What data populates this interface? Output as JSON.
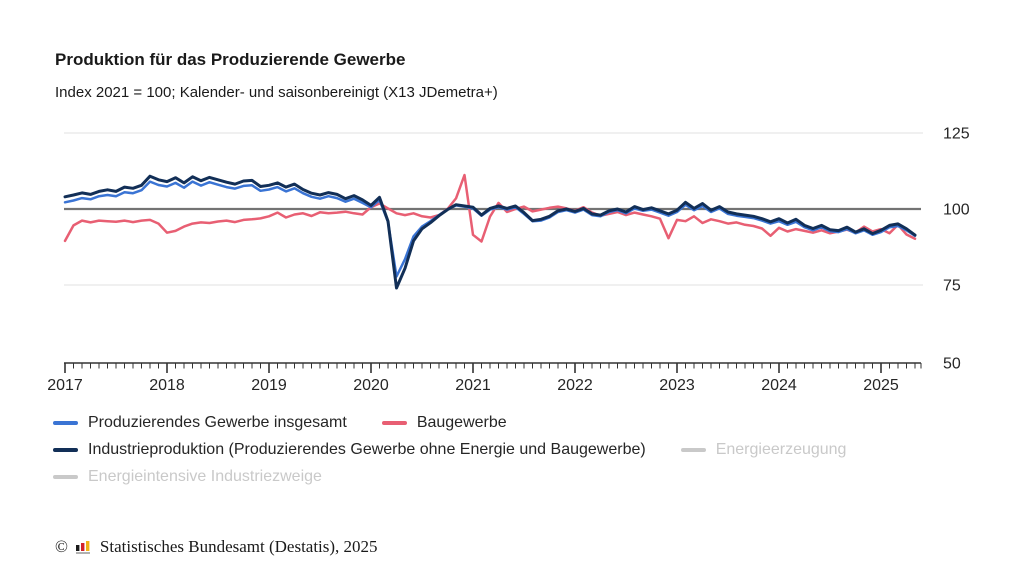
{
  "header": {
    "title": "Produktion für das Produzierende Gewerbe",
    "subtitle": "Index 2021 = 100; Kalender- und saisonbereinigt (X13 JDemetra+)"
  },
  "legend": {
    "items": [
      {
        "label": "Produzierendes Gewerbe insgesamt",
        "color": "#3a74d4",
        "active": true
      },
      {
        "label": "Baugewerbe",
        "color": "#e85f73",
        "active": true
      },
      {
        "label": "Industrieproduktion (Produzierendes Gewerbe ohne Energie und Baugewerbe)",
        "color": "#122f57",
        "active": true
      },
      {
        "label": "Energieerzeugung",
        "color": "#c9c9c9",
        "active": false
      },
      {
        "label": "Energieintensive Industriezweige",
        "color": "#c9c9c9",
        "active": false
      }
    ]
  },
  "footer": {
    "copyright_symbol": "©",
    "logo_icon": "destatis-bar-chart-logo",
    "logo_colors": {
      "black": "#1a1a1a",
      "red": "#d2232a",
      "gold": "#f0b316",
      "base": "#b0b0b0"
    },
    "text": "Statistisches Bundesamt (Destatis), 2025"
  },
  "chart_data": {
    "type": "line",
    "title": "Produktion für das Produzierende Gewerbe",
    "subtitle": "Index 2021 = 100; Kalender- und saisonbereinigt (X13 JDemetra+)",
    "x_axis": {
      "start": "2017-01",
      "end": "2025-05",
      "frequency": "monthly",
      "year_labels": [
        "2017",
        "2018",
        "2019",
        "2020",
        "2021",
        "2022",
        "2023",
        "2024",
        "2025"
      ]
    },
    "ylim": [
      50,
      125
    ],
    "yticks": [
      50,
      75,
      100,
      125
    ],
    "reference_line": 100,
    "grid": true,
    "legend_position": "bottom",
    "colors": {
      "grid_light": "#e2e2e2",
      "reference": "#737373",
      "axis": "#333333",
      "tick_label": "#262626"
    },
    "series": [
      {
        "name": "Baugewerbe",
        "color": "#e85f73",
        "width": 2.5,
        "values": [
          89.5,
          94.6,
          96.2,
          95.6,
          96.2,
          96.0,
          95.8,
          96.2,
          95.7,
          96.2,
          96.4,
          95.2,
          92.2,
          92.8,
          94.2,
          95.2,
          95.6,
          95.4,
          95.9,
          96.2,
          95.7,
          96.4,
          96.6,
          96.9,
          97.6,
          98.8,
          97.2,
          98.2,
          98.6,
          97.7,
          98.9,
          98.6,
          98.8,
          99.1,
          98.6,
          98.2,
          100.6,
          101.8,
          100.2,
          98.6,
          98.0,
          98.6,
          97.6,
          97.2,
          98.0,
          100.0,
          103.5,
          111.2,
          91.5,
          89.3,
          97.5,
          102.0,
          99.0,
          100.0,
          100.8,
          99.2,
          99.8,
          100.4,
          100.8,
          100.2,
          99.4,
          100.6,
          98.8,
          97.8,
          98.4,
          99.0,
          98.0,
          98.8,
          98.2,
          97.6,
          96.8,
          90.4,
          96.4,
          96.0,
          97.6,
          95.4,
          96.6,
          96.0,
          95.2,
          95.6,
          94.8,
          94.4,
          93.6,
          91.2,
          93.8,
          92.6,
          93.4,
          92.8,
          92.2,
          93.0,
          92.0,
          92.6,
          93.2,
          92.2,
          94.2,
          92.6,
          93.4,
          92.0,
          94.8,
          91.6,
          90.2
        ]
      },
      {
        "name": "Produzierendes Gewerbe insgesamt",
        "color": "#3a74d4",
        "width": 2.5,
        "values": [
          102.2,
          102.8,
          103.6,
          103.2,
          104.2,
          104.6,
          104.2,
          105.5,
          105.2,
          106.2,
          109.0,
          107.9,
          107.4,
          108.6,
          107.0,
          109.0,
          107.7,
          108.8,
          108.0,
          107.2,
          106.7,
          107.6,
          107.8,
          106.0,
          106.4,
          107.2,
          105.8,
          106.8,
          105.2,
          104.0,
          103.4,
          104.2,
          103.6,
          102.4,
          103.4,
          102.0,
          100.6,
          103.0,
          95.8,
          77.8,
          83.5,
          91.0,
          94.2,
          96.0,
          98.0,
          99.8,
          101.2,
          100.8,
          100.2,
          97.8,
          99.8,
          100.6,
          99.8,
          100.6,
          98.4,
          96.0,
          96.2,
          97.2,
          99.0,
          99.6,
          98.8,
          99.8,
          98.0,
          97.6,
          99.0,
          99.6,
          98.6,
          100.2,
          99.4,
          99.8,
          98.8,
          97.8,
          99.0,
          101.4,
          99.6,
          101.0,
          99.0,
          100.2,
          98.4,
          97.8,
          97.4,
          97.0,
          96.2,
          95.2,
          96.0,
          94.8,
          95.8,
          94.0,
          93.0,
          94.0,
          92.7,
          92.4,
          93.4,
          92.0,
          93.0,
          91.5,
          92.4,
          94.0,
          94.4,
          93.0,
          91.2
        ]
      },
      {
        "name": "Industrieproduktion (Produzierendes Gewerbe ohne Energie und Baugewerbe)",
        "color": "#122f57",
        "width": 3,
        "values": [
          104.0,
          104.6,
          105.3,
          104.8,
          105.8,
          106.3,
          105.8,
          107.2,
          106.8,
          107.8,
          110.8,
          109.6,
          109.0,
          110.3,
          108.6,
          110.6,
          109.3,
          110.4,
          109.6,
          108.8,
          108.2,
          109.2,
          109.4,
          107.4,
          107.8,
          108.6,
          107.2,
          108.2,
          106.4,
          105.2,
          104.6,
          105.4,
          104.8,
          103.4,
          104.4,
          103.0,
          101.2,
          103.8,
          96.0,
          74.0,
          80.5,
          89.5,
          93.5,
          95.5,
          97.8,
          99.8,
          101.4,
          101.0,
          100.6,
          98.0,
          100.2,
          101.0,
          100.2,
          101.0,
          98.8,
          96.2,
          96.6,
          97.6,
          99.4,
          100.0,
          99.2,
          100.2,
          98.4,
          98.0,
          99.4,
          100.0,
          99.0,
          100.8,
          99.8,
          100.4,
          99.4,
          98.4,
          99.6,
          102.2,
          100.2,
          101.8,
          99.6,
          100.8,
          99.0,
          98.4,
          98.0,
          97.6,
          96.8,
          95.8,
          96.8,
          95.4,
          96.6,
          94.6,
          93.6,
          94.6,
          93.2,
          92.9,
          94.0,
          92.4,
          93.5,
          91.9,
          93.0,
          94.6,
          95.1,
          93.5,
          91.4
        ]
      }
    ],
    "inactive_series": [
      "Energieerzeugung",
      "Energieintensive Industriezweige"
    ]
  }
}
